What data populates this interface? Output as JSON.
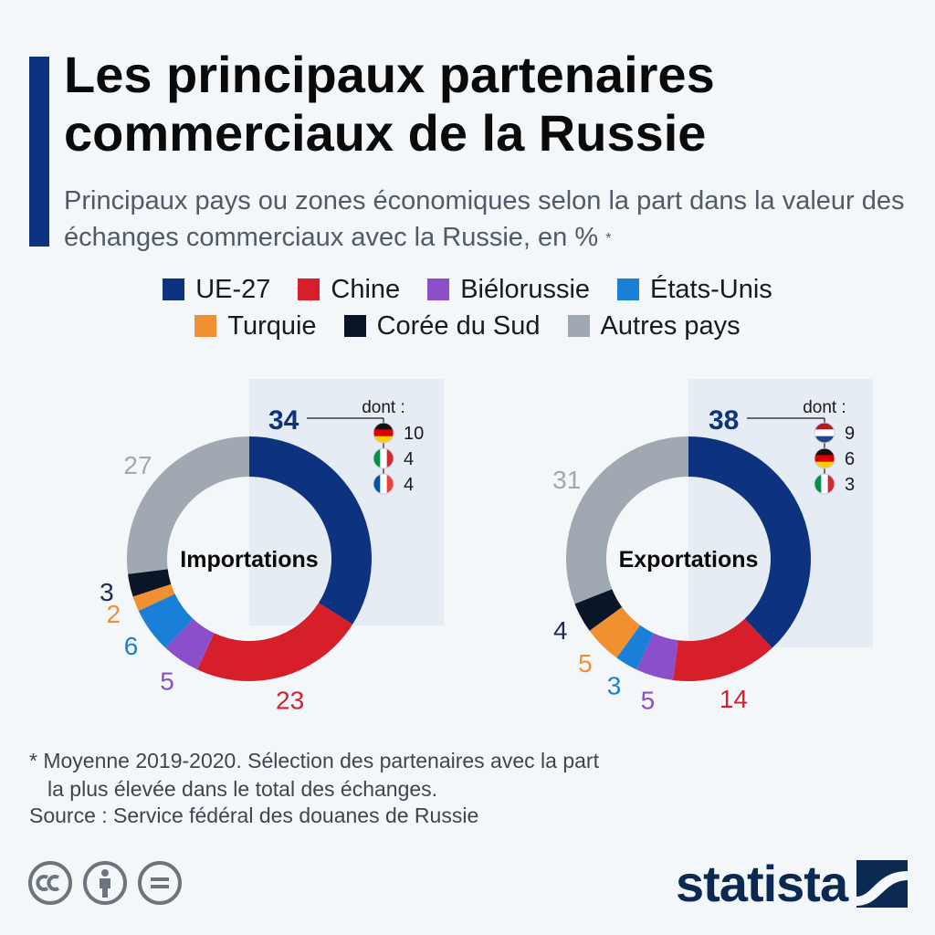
{
  "title": "Les principaux partenaires commerciaux de la Russie",
  "subtitle": "Principaux pays ou zones économiques selon la part dans la valeur des échanges commerciaux avec la Russie, en %",
  "subtitle_mark": "*",
  "colors": {
    "ue27": "#0d3380",
    "chine": "#d71f2b",
    "bielorussie": "#8b4fc9",
    "etats_unis": "#1a7fd6",
    "turquie": "#f09030",
    "coree": "#0a1628",
    "autres": "#a0a8b1",
    "highlight_panel": "#e6ecf4"
  },
  "legend": [
    [
      {
        "label": "UE-27",
        "color": "#0d3380"
      },
      {
        "label": "Chine",
        "color": "#d71f2b"
      },
      {
        "label": "Biélorussie",
        "color": "#8b4fc9"
      },
      {
        "label": "États-Unis",
        "color": "#1a7fd6"
      }
    ],
    [
      {
        "label": "Turquie",
        "color": "#f09030"
      },
      {
        "label": "Corée du Sud",
        "color": "#0a1628"
      },
      {
        "label": "Autres pays",
        "color": "#a0a8b1"
      }
    ]
  ],
  "chart_data": [
    {
      "type": "pie",
      "center_label": "Importations",
      "categories": [
        "UE-27",
        "Chine",
        "Biélorussie",
        "États-Unis",
        "Turquie",
        "Corée du Sud",
        "Autres pays"
      ],
      "values": [
        34,
        23,
        5,
        6,
        2,
        3,
        27
      ],
      "breakdown_label": "dont :",
      "breakdown": [
        {
          "flag": "germany-flag-icon",
          "value": 10
        },
        {
          "flag": "italy-flag-icon",
          "value": 4
        },
        {
          "flag": "france-flag-icon",
          "value": 4
        }
      ]
    },
    {
      "type": "pie",
      "center_label": "Exportations",
      "categories": [
        "UE-27",
        "Chine",
        "Biélorussie",
        "États-Unis",
        "Turquie",
        "Corée du Sud",
        "Autres pays"
      ],
      "values": [
        38,
        14,
        5,
        3,
        5,
        4,
        31
      ],
      "breakdown_label": "dont :",
      "breakdown": [
        {
          "flag": "netherlands-flag-icon",
          "value": 9
        },
        {
          "flag": "germany-flag-icon",
          "value": 6
        },
        {
          "flag": "italy-flag-icon",
          "value": 3
        }
      ]
    }
  ],
  "footnote_line1": "* Moyenne 2019-2020. Sélection des partenaires avec la part",
  "footnote_line2": "la plus élevée dans le total des échanges.",
  "source": "Source : Service fédéral des douanes de Russie",
  "logo": "statista",
  "license_icons": [
    "cc-icon",
    "attribution-icon",
    "no-derivatives-icon"
  ]
}
